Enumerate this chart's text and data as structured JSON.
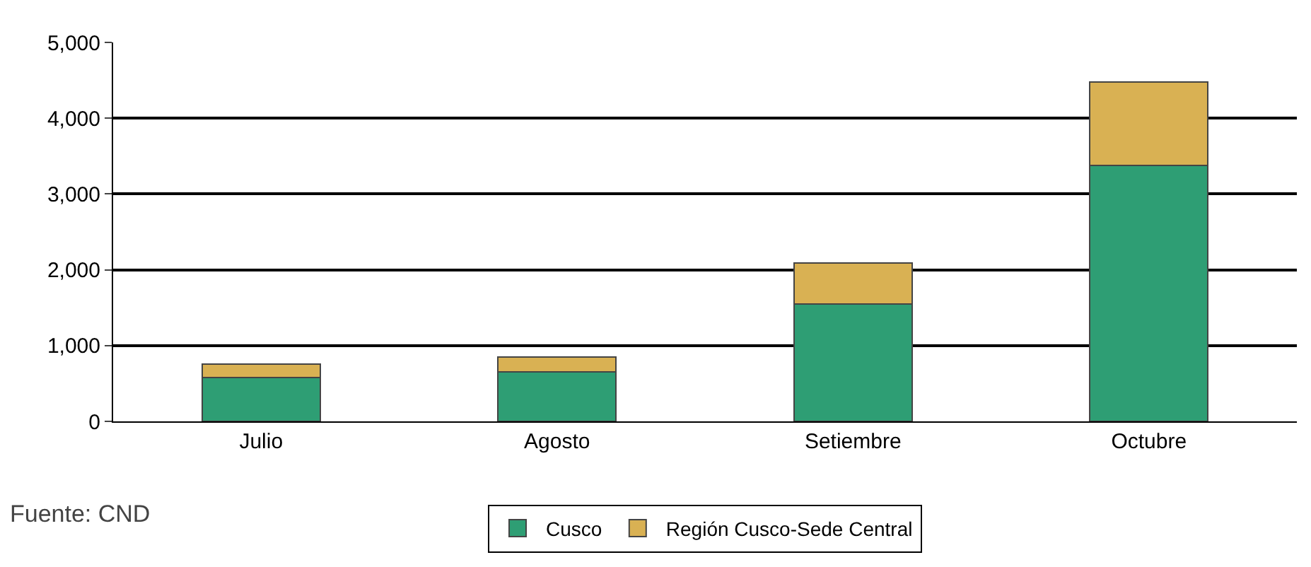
{
  "chart_data": {
    "type": "bar",
    "stacked": true,
    "categories": [
      "Julio",
      "Agosto",
      "Setiembre",
      "Octubre"
    ],
    "series": [
      {
        "name": "Cusco",
        "color": "#2e9e74",
        "values": [
          580,
          650,
          1550,
          3380
        ]
      },
      {
        "name": "Región Cusco-Sede Central",
        "color": "#d9b153",
        "values": [
          180,
          200,
          540,
          1100
        ]
      }
    ],
    "ylim": [
      0,
      5000
    ],
    "yticks": [
      {
        "value": 0,
        "label": "0"
      },
      {
        "value": 1000,
        "label": "1,000"
      },
      {
        "value": 2000,
        "label": "2,000"
      },
      {
        "value": 3000,
        "label": "3,000"
      },
      {
        "value": 4000,
        "label": "4,000"
      },
      {
        "value": 5000,
        "label": "5,000"
      }
    ],
    "grid": "y",
    "legend": "bottom",
    "annotations": [
      "Fuente: CND"
    ]
  }
}
